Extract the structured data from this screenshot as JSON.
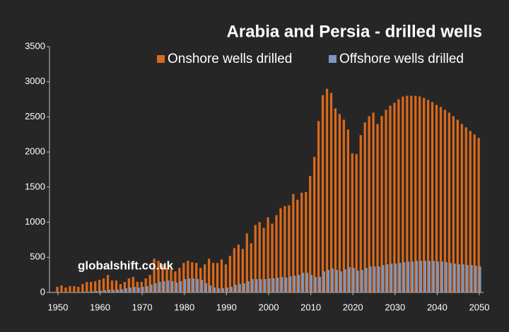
{
  "chart_data": {
    "type": "bar",
    "title": "Arabia and Persia - drilled wells",
    "watermark": "globalshift.co.uk",
    "legend": "top-right",
    "grid": false,
    "x": [
      1950,
      1951,
      1952,
      1953,
      1954,
      1955,
      1956,
      1957,
      1958,
      1959,
      1960,
      1961,
      1962,
      1963,
      1964,
      1965,
      1966,
      1967,
      1968,
      1969,
      1970,
      1971,
      1972,
      1973,
      1974,
      1975,
      1976,
      1977,
      1978,
      1979,
      1980,
      1981,
      1982,
      1983,
      1984,
      1985,
      1986,
      1987,
      1988,
      1989,
      1990,
      1991,
      1992,
      1993,
      1994,
      1995,
      1996,
      1997,
      1998,
      1999,
      2000,
      2001,
      2002,
      2003,
      2004,
      2005,
      2006,
      2007,
      2008,
      2009,
      2010,
      2011,
      2012,
      2013,
      2014,
      2015,
      2016,
      2017,
      2018,
      2019,
      2020,
      2021,
      2022,
      2023,
      2024,
      2025,
      2026,
      2027,
      2028,
      2029,
      2030,
      2031,
      2032,
      2033,
      2034,
      2035,
      2036,
      2037,
      2038,
      2039,
      2040,
      2041,
      2042,
      2043,
      2044,
      2045,
      2046,
      2047,
      2048,
      2049,
      2050
    ],
    "xlim": [
      1948,
      2051
    ],
    "xticks": [
      1950,
      1960,
      1970,
      1980,
      1990,
      2000,
      2010,
      2020,
      2030,
      2040,
      2050
    ],
    "ylim": [
      0,
      3500
    ],
    "yticks": [
      0,
      500,
      1000,
      1500,
      2000,
      2500,
      3000,
      3500
    ],
    "series": [
      {
        "name": "Onshore wells drilled",
        "color": "#d9691c",
        "values": [
          80,
          100,
          70,
          90,
          90,
          80,
          120,
          150,
          150,
          160,
          180,
          200,
          250,
          170,
          170,
          120,
          150,
          200,
          220,
          150,
          150,
          200,
          250,
          480,
          450,
          400,
          350,
          330,
          300,
          350,
          420,
          450,
          430,
          420,
          350,
          400,
          480,
          420,
          420,
          470,
          400,
          520,
          630,
          680,
          620,
          840,
          700,
          960,
          1000,
          920,
          1070,
          980,
          1100,
          1200,
          1230,
          1240,
          1400,
          1320,
          1420,
          1430,
          1660,
          1930,
          2440,
          2810,
          2900,
          2840,
          2620,
          2540,
          2460,
          2320,
          1980,
          1970,
          2240,
          2420,
          2510,
          2560,
          2400,
          2510,
          2600,
          2660,
          2700,
          2750,
          2790,
          2800,
          2800,
          2800,
          2790,
          2770,
          2740,
          2710,
          2670,
          2640,
          2600,
          2560,
          2510,
          2460,
          2400,
          2350,
          2300,
          2250,
          2200
        ]
      },
      {
        "name": "Offshore wells drilled",
        "color": "#7f97c0",
        "values": [
          0,
          0,
          0,
          0,
          0,
          5,
          10,
          10,
          15,
          20,
          25,
          30,
          40,
          35,
          40,
          45,
          60,
          70,
          80,
          70,
          80,
          90,
          110,
          130,
          150,
          160,
          170,
          160,
          140,
          160,
          190,
          200,
          200,
          190,
          180,
          130,
          100,
          70,
          60,
          60,
          70,
          80,
          110,
          120,
          130,
          160,
          190,
          190,
          190,
          190,
          200,
          200,
          210,
          220,
          210,
          230,
          240,
          250,
          280,
          280,
          250,
          220,
          220,
          300,
          320,
          340,
          320,
          300,
          330,
          360,
          350,
          310,
          320,
          350,
          370,
          370,
          370,
          390,
          400,
          410,
          410,
          420,
          430,
          440,
          440,
          450,
          450,
          450,
          450,
          450,
          440,
          440,
          430,
          420,
          410,
          400,
          400,
          390,
          390,
          380,
          370
        ]
      }
    ]
  }
}
